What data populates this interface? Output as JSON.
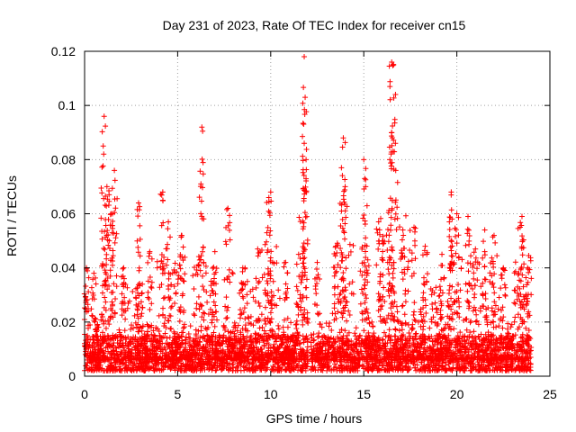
{
  "chart_data": {
    "type": "scatter",
    "title": "Day 231 of 2023, Rate Of TEC Index for receiver cn15",
    "xlabel": "GPS time / hours",
    "ylabel": "ROTI / TECUs",
    "xlim": [
      0,
      25
    ],
    "ylim": [
      0,
      0.12
    ],
    "xticks": [
      0,
      5,
      10,
      15,
      20,
      25
    ],
    "yticks": [
      0,
      0.02,
      0.04,
      0.06,
      0.08,
      0.1,
      0.12
    ],
    "xtick_labels": [
      "0",
      "5",
      "10",
      "15",
      "20",
      "25"
    ],
    "ytick_labels": [
      "0",
      "0.02",
      "0.04",
      "0.06",
      "0.08",
      "0.1",
      "0.12"
    ],
    "grid": true,
    "marker": "+",
    "color": "#ff0000",
    "x_extent_hours": [
      0,
      24
    ],
    "gap_hours": [
      12.0,
      12.15
    ],
    "peaks": [
      {
        "x": 0.1,
        "y": 0.04
      },
      {
        "x": 0.5,
        "y": 0.038
      },
      {
        "x": 1.0,
        "y": 0.085
      },
      {
        "x": 1.05,
        "y": 0.096
      },
      {
        "x": 1.2,
        "y": 0.07
      },
      {
        "x": 1.6,
        "y": 0.076
      },
      {
        "x": 1.5,
        "y": 0.06
      },
      {
        "x": 2.1,
        "y": 0.04
      },
      {
        "x": 2.9,
        "y": 0.064
      },
      {
        "x": 3.5,
        "y": 0.046
      },
      {
        "x": 4.2,
        "y": 0.068
      },
      {
        "x": 4.5,
        "y": 0.057
      },
      {
        "x": 5.2,
        "y": 0.052
      },
      {
        "x": 6.3,
        "y": 0.092
      },
      {
        "x": 6.25,
        "y": 0.071
      },
      {
        "x": 7.0,
        "y": 0.046
      },
      {
        "x": 7.7,
        "y": 0.062
      },
      {
        "x": 8.5,
        "y": 0.04
      },
      {
        "x": 9.3,
        "y": 0.047
      },
      {
        "x": 9.9,
        "y": 0.066
      },
      {
        "x": 10.0,
        "y": 0.068
      },
      {
        "x": 10.8,
        "y": 0.042
      },
      {
        "x": 11.5,
        "y": 0.045
      },
      {
        "x": 11.8,
        "y": 0.118
      },
      {
        "x": 11.85,
        "y": 0.103
      },
      {
        "x": 11.8,
        "y": 0.086
      },
      {
        "x": 11.9,
        "y": 0.08
      },
      {
        "x": 12.5,
        "y": 0.042
      },
      {
        "x": 13.5,
        "y": 0.048
      },
      {
        "x": 13.9,
        "y": 0.088
      },
      {
        "x": 13.8,
        "y": 0.077
      },
      {
        "x": 14.0,
        "y": 0.07
      },
      {
        "x": 15.0,
        "y": 0.08
      },
      {
        "x": 15.1,
        "y": 0.07
      },
      {
        "x": 15.8,
        "y": 0.057
      },
      {
        "x": 16.0,
        "y": 0.05
      },
      {
        "x": 16.5,
        "y": 0.116
      },
      {
        "x": 16.6,
        "y": 0.115
      },
      {
        "x": 16.5,
        "y": 0.09
      },
      {
        "x": 16.4,
        "y": 0.08
      },
      {
        "x": 16.7,
        "y": 0.086
      },
      {
        "x": 17.1,
        "y": 0.054
      },
      {
        "x": 17.7,
        "y": 0.055
      },
      {
        "x": 18.3,
        "y": 0.048
      },
      {
        "x": 19.2,
        "y": 0.045
      },
      {
        "x": 19.6,
        "y": 0.057
      },
      {
        "x": 19.7,
        "y": 0.068
      },
      {
        "x": 20.0,
        "y": 0.06
      },
      {
        "x": 20.6,
        "y": 0.059
      },
      {
        "x": 21.0,
        "y": 0.047
      },
      {
        "x": 21.5,
        "y": 0.054
      },
      {
        "x": 22.0,
        "y": 0.052
      },
      {
        "x": 22.5,
        "y": 0.04
      },
      {
        "x": 23.5,
        "y": 0.059
      },
      {
        "x": 23.4,
        "y": 0.055
      },
      {
        "x": 23.8,
        "y": 0.04
      }
    ],
    "burst_intervals": [
      {
        "from": 0.0,
        "to": 0.4,
        "level": 0.035
      },
      {
        "from": 0.9,
        "to": 1.8,
        "level": 0.07
      },
      {
        "from": 2.0,
        "to": 3.2,
        "level": 0.035
      },
      {
        "from": 3.9,
        "to": 5.4,
        "level": 0.045
      },
      {
        "from": 5.8,
        "to": 7.0,
        "level": 0.045
      },
      {
        "from": 7.5,
        "to": 8.0,
        "level": 0.04
      },
      {
        "from": 8.3,
        "to": 9.1,
        "level": 0.035
      },
      {
        "from": 9.4,
        "to": 10.5,
        "level": 0.05
      },
      {
        "from": 11.5,
        "to": 12.0,
        "level": 0.06
      },
      {
        "from": 13.3,
        "to": 14.5,
        "level": 0.06
      },
      {
        "from": 14.8,
        "to": 15.3,
        "level": 0.05
      },
      {
        "from": 15.8,
        "to": 17.5,
        "level": 0.06
      },
      {
        "from": 18.0,
        "to": 19.2,
        "level": 0.038
      },
      {
        "from": 19.5,
        "to": 20.4,
        "level": 0.045
      },
      {
        "from": 20.5,
        "to": 22.4,
        "level": 0.045
      },
      {
        "from": 23.0,
        "to": 24.0,
        "level": 0.045
      }
    ],
    "baseline_range": [
      0.002,
      0.015
    ]
  }
}
